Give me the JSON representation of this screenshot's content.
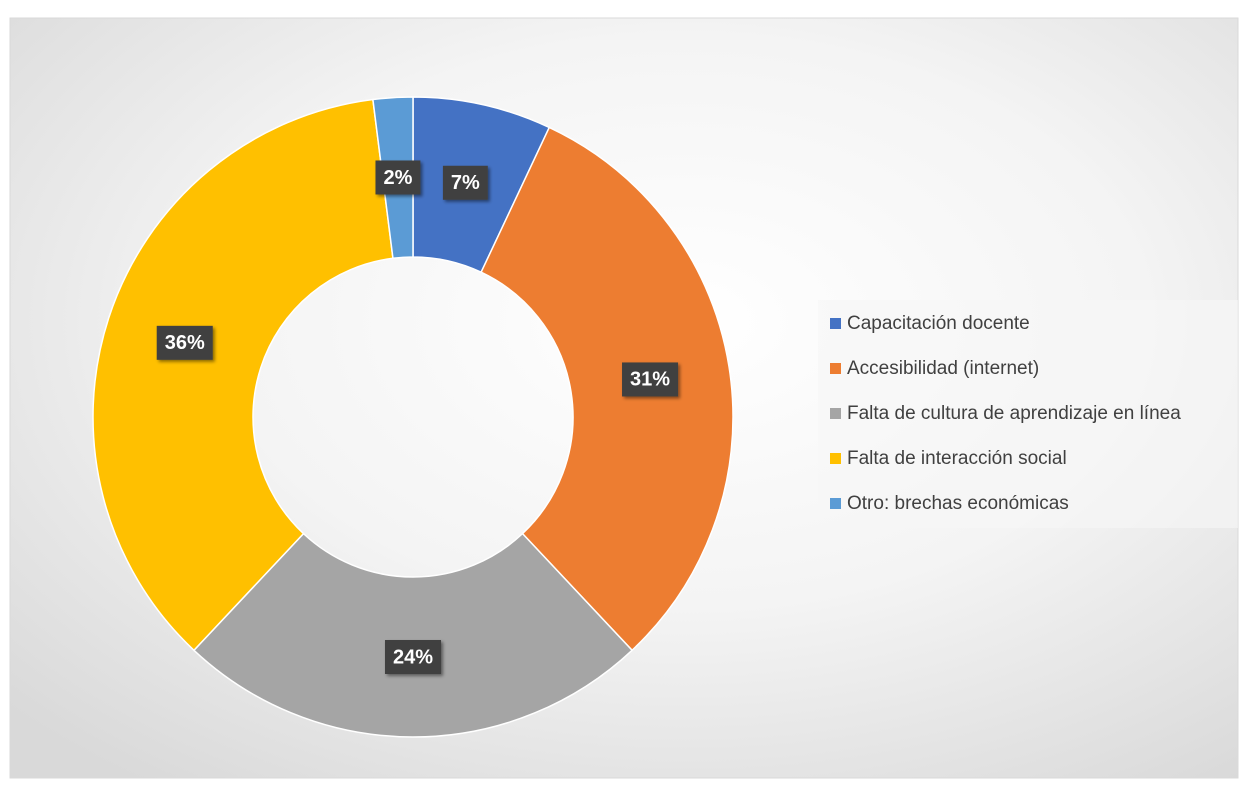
{
  "chart_data": {
    "type": "donut",
    "categories": [
      "Capacitación docente",
      "Accesibilidad (internet)",
      "Falta de cultura de aprendizaje en línea",
      "Falta de interacción social",
      "Otro: brechas económicas"
    ],
    "values": [
      7,
      31,
      24,
      36,
      2
    ],
    "value_labels": [
      "7%",
      "31%",
      "24%",
      "36%",
      "2%"
    ],
    "colors": [
      "#4472c4",
      "#ed7d31",
      "#a5a5a5",
      "#ffc000",
      "#5b9bd5"
    ],
    "legend": "right"
  }
}
